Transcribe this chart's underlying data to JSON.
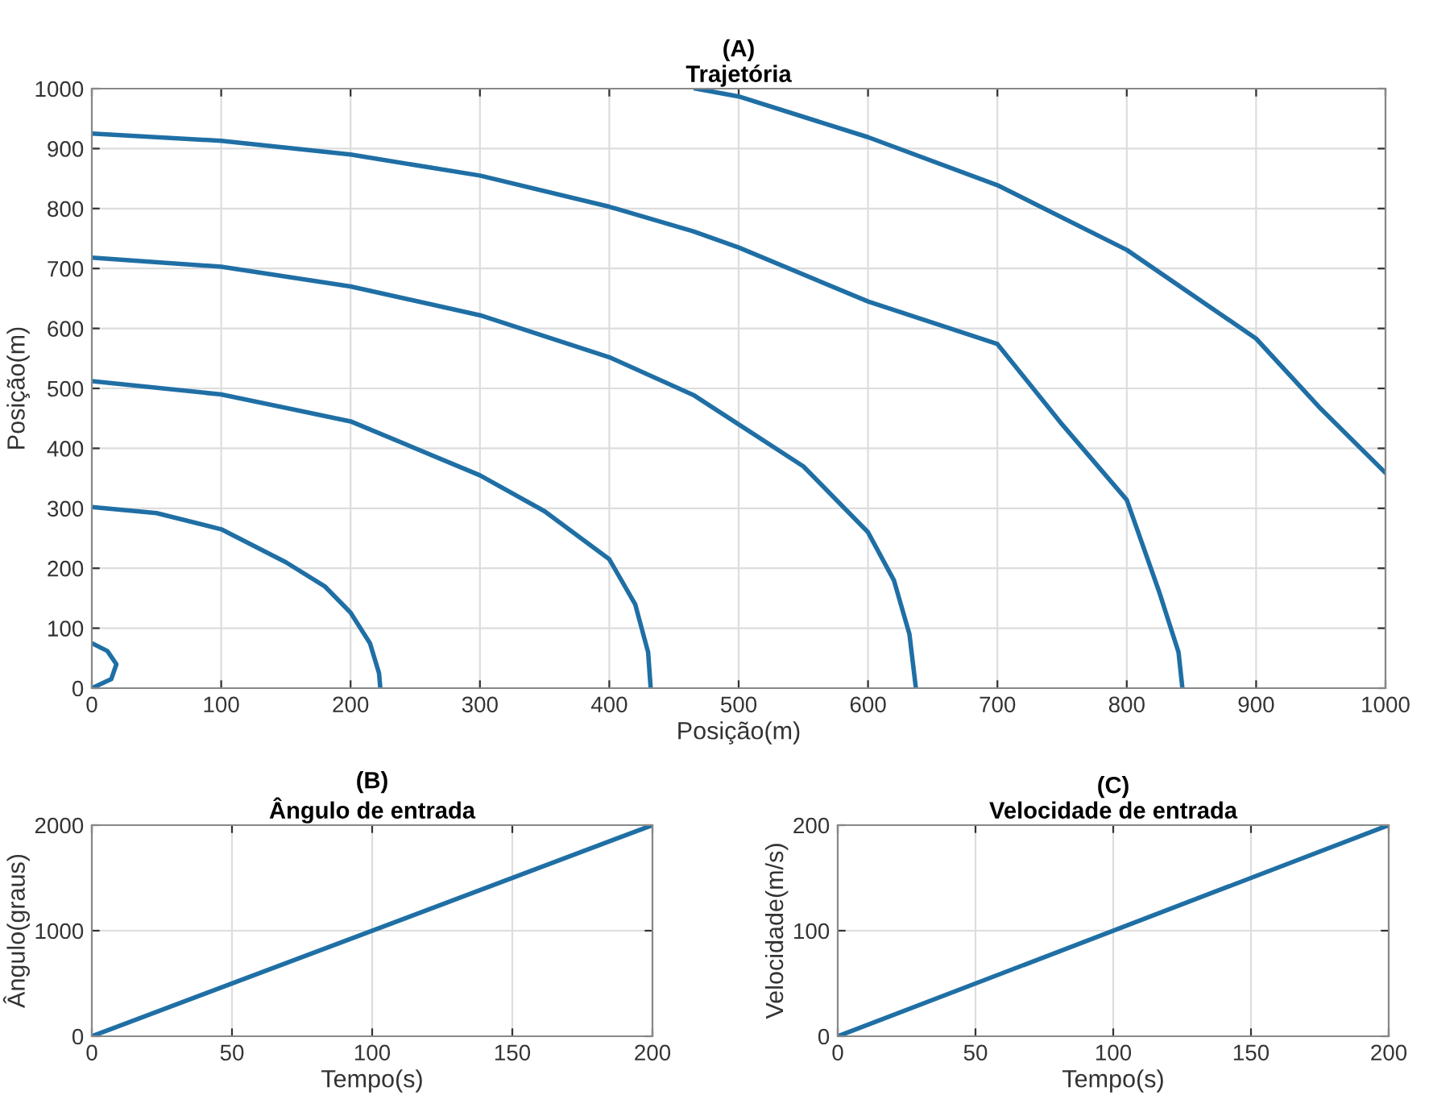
{
  "chart_data": [
    {
      "type": "line",
      "title": "(A)",
      "subtitle": "Trajetória",
      "xlabel": "Posição(m)",
      "ylabel": "Posição(m)",
      "xlim": [
        0,
        1000
      ],
      "ylim": [
        0,
        1000
      ],
      "xticks": [
        0,
        100,
        200,
        300,
        400,
        500,
        600,
        700,
        800,
        900,
        1000
      ],
      "yticks": [
        0,
        100,
        200,
        300,
        400,
        500,
        600,
        700,
        800,
        900,
        1000
      ],
      "grid": true,
      "legend": false,
      "series": [
        {
          "color": "#1f6fa5",
          "x": [
            0,
            12,
            19,
            15,
            0,
            null,
            0,
            50,
            100,
            150,
            180,
            200,
            215,
            222,
            223,
            null,
            0,
            100,
            200,
            300,
            350,
            400,
            420,
            430,
            432,
            null,
            0,
            100,
            200,
            300,
            400,
            465,
            500,
            550,
            600,
            620,
            632,
            637,
            null,
            0,
            100,
            200,
            300,
            400,
            465,
            500,
            600,
            700,
            750,
            800,
            825,
            840,
            843,
            null,
            467,
            500,
            600,
            700,
            800,
            900,
            950,
            1000
          ],
          "values": [
            75,
            62,
            40,
            15,
            0,
            null,
            302,
            292,
            265,
            210,
            170,
            126,
            75,
            25,
            0,
            null,
            512,
            490,
            445,
            355,
            295,
            215,
            140,
            60,
            0,
            null,
            718,
            703,
            670,
            622,
            552,
            489,
            440,
            370,
            260,
            180,
            90,
            0,
            null,
            925,
            913,
            890,
            855,
            803,
            762,
            735,
            645,
            574,
            440,
            314,
            161,
            60,
            0,
            null,
            1000,
            987,
            919,
            839,
            731,
            583,
            466,
            359
          ]
        }
      ]
    },
    {
      "type": "line",
      "title": "(B)",
      "subtitle": "Ângulo de entrada",
      "xlabel": "Tempo(s)",
      "ylabel": "Ângulo(graus)",
      "xlim": [
        0,
        200
      ],
      "ylim": [
        0,
        2000
      ],
      "xticks": [
        0,
        50,
        100,
        150,
        200
      ],
      "yticks": [
        0,
        1000,
        2000
      ],
      "grid": true,
      "legend": false,
      "series": [
        {
          "color": "#1f6fa5",
          "x": [
            0,
            200
          ],
          "values": [
            0,
            2000
          ]
        }
      ]
    },
    {
      "type": "line",
      "title": "(C)",
      "subtitle": "Velocidade de entrada",
      "xlabel": "Tempo(s)",
      "ylabel": "Velocidade(m/s)",
      "xlim": [
        0,
        200
      ],
      "ylim": [
        0,
        200
      ],
      "xticks": [
        0,
        50,
        100,
        150,
        200
      ],
      "yticks": [
        0,
        100,
        200
      ],
      "grid": true,
      "legend": false,
      "series": [
        {
          "color": "#1f6fa5",
          "x": [
            0,
            200
          ],
          "values": [
            0,
            200
          ]
        }
      ]
    }
  ]
}
